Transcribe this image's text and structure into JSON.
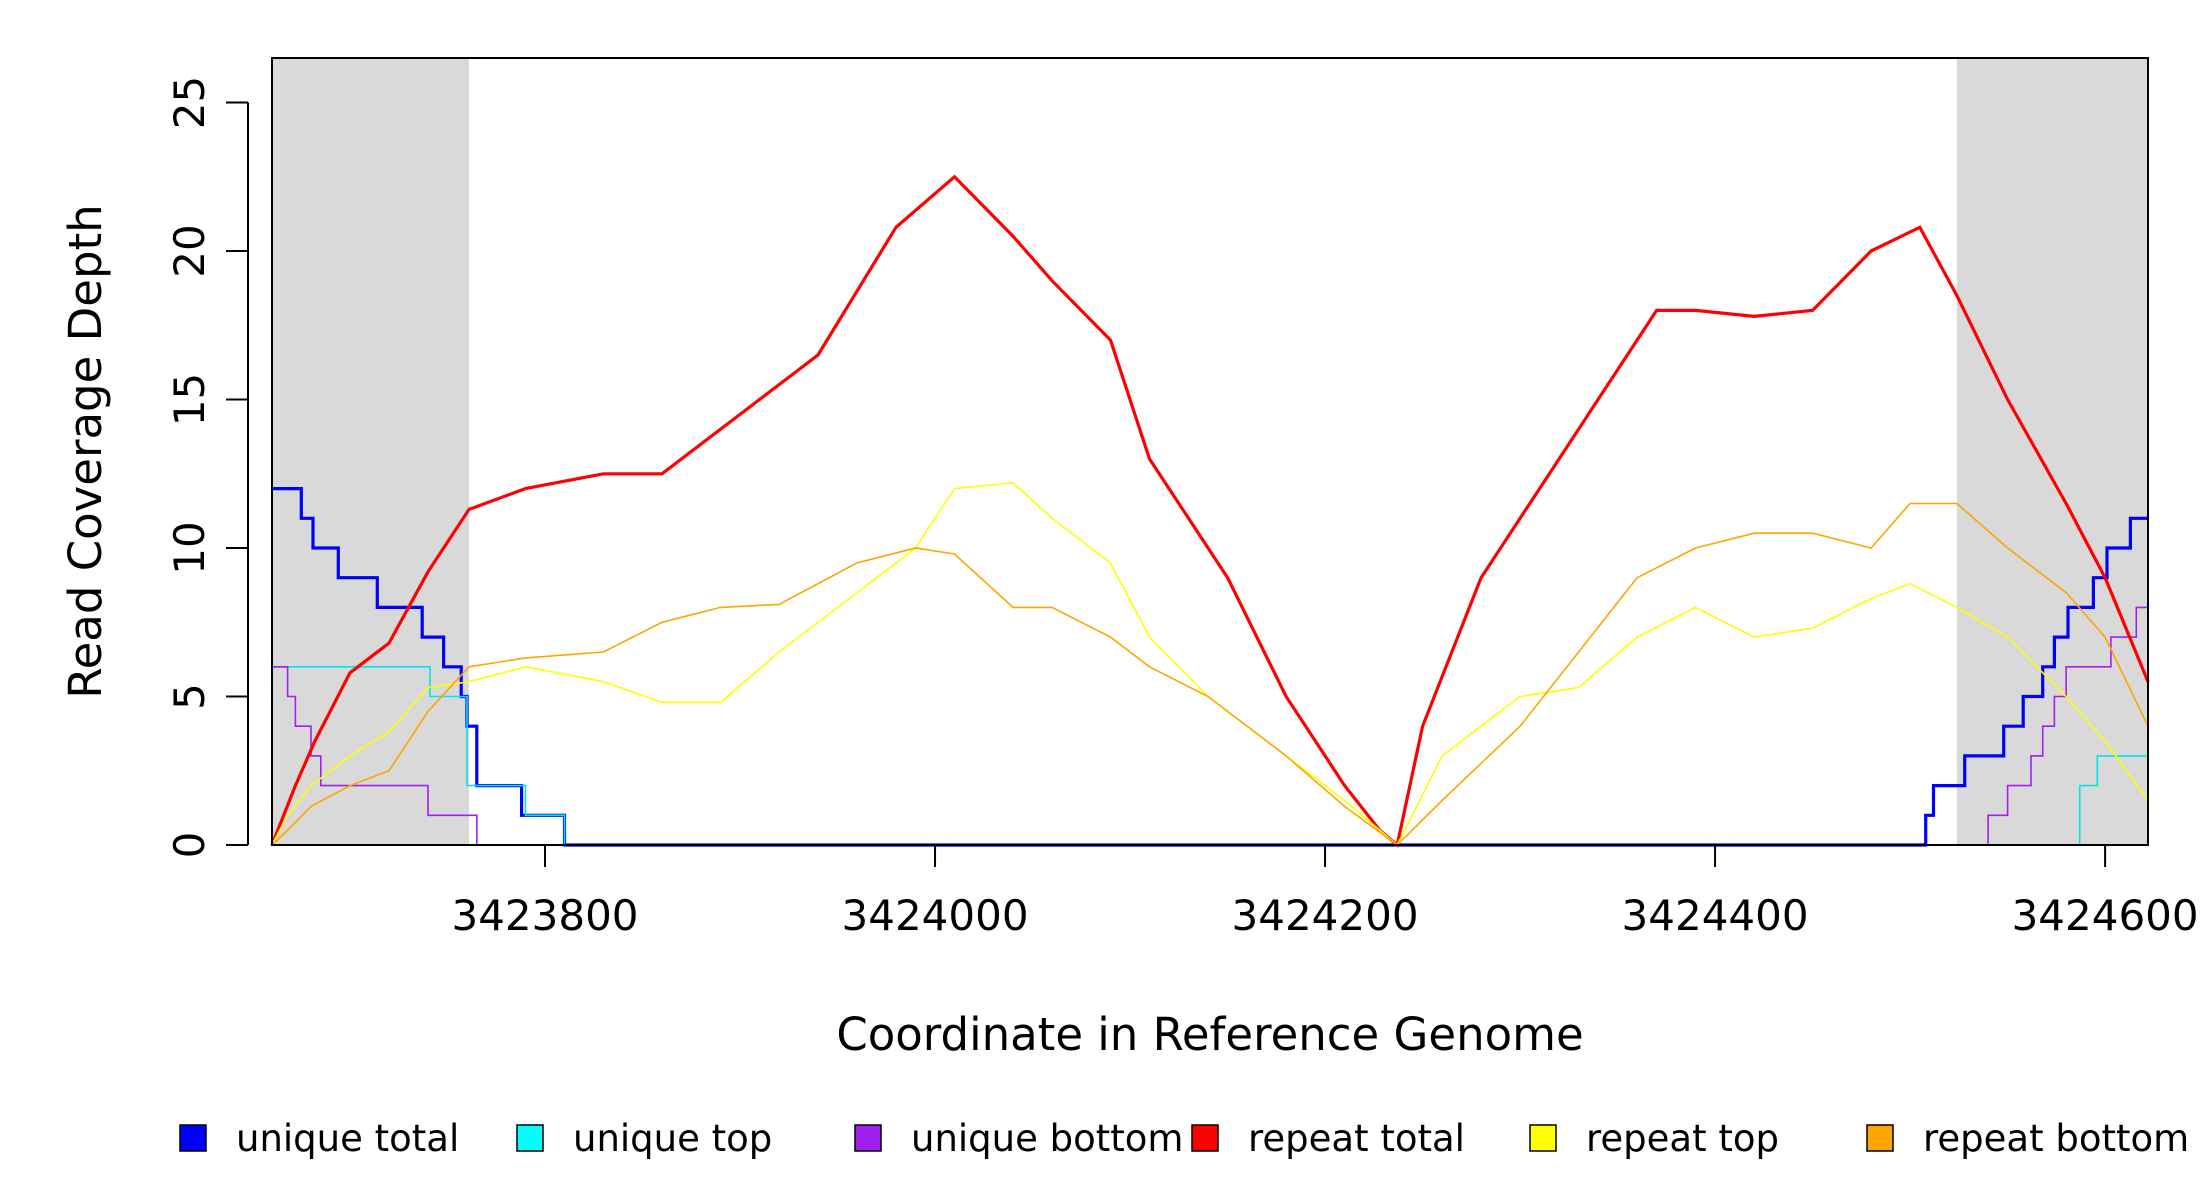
{
  "chart_data": {
    "type": "line",
    "title": "",
    "xlabel": "Coordinate in Reference Genome",
    "ylabel": "Read Coverage Depth",
    "xlim": [
      3423660,
      3424622
    ],
    "ylim": [
      0,
      26.5
    ],
    "x_ticks": [
      3423800,
      3424000,
      3424200,
      3424400,
      3424600
    ],
    "x_tick_labels": [
      "3423800",
      "3424000",
      "3424200",
      "3424400",
      "3424600"
    ],
    "y_ticks": [
      0,
      5,
      10,
      15,
      20,
      25
    ],
    "y_tick_labels": [
      "0",
      "5",
      "10",
      "15",
      "20",
      "25"
    ],
    "grid": false,
    "legend_position": "bottom",
    "shaded_regions": [
      {
        "x_start": 3423660,
        "x_end": 3423761,
        "color": "#d9d9d9"
      },
      {
        "x_start": 3424524,
        "x_end": 3424622,
        "color": "#d9d9d9"
      }
    ],
    "series": [
      {
        "name": "unique total",
        "color": "#0000ff",
        "width": 3.2,
        "step": true,
        "x": [
          3423660,
          3423668,
          3423675,
          3423681,
          3423689,
          3423694,
          3423700,
          3423714,
          3423737,
          3423741,
          3423748,
          3423757,
          3423760,
          3423765,
          3423781,
          3423788,
          3423810,
          3424504,
          3424508,
          3424512,
          3424528,
          3424537,
          3424548,
          3424558,
          3424568,
          3424574,
          3424581,
          3424594,
          3424601,
          3424613,
          3424622
        ],
        "y": [
          12,
          12,
          11,
          10,
          10,
          9,
          9,
          8,
          7,
          7,
          6,
          5,
          4,
          2,
          2,
          1,
          0,
          0,
          1,
          2,
          3,
          3,
          4,
          5,
          6,
          7,
          8,
          9,
          10,
          11,
          11
        ]
      },
      {
        "name": "unique top",
        "color": "#00e5ee",
        "width": 1.6,
        "step": true,
        "x": [
          3423660,
          3423714,
          3423741,
          3423754,
          3423760,
          3423790,
          3423810,
          3424526,
          3424587,
          3424596,
          3424622
        ],
        "y": [
          6,
          6,
          5,
          5,
          2,
          1,
          0,
          0,
          2,
          3,
          3
        ]
      },
      {
        "name": "unique bottom",
        "color": "#a020f0",
        "width": 1.6,
        "step": true,
        "x": [
          3423660,
          3423668,
          3423672,
          3423680,
          3423685,
          3423695,
          3423710,
          3423730,
          3423740,
          3423765,
          3424526,
          3424540,
          3424550,
          3424562,
          3424568,
          3424574,
          3424580,
          3424594,
          3424603,
          3424616,
          3424622
        ],
        "y": [
          6,
          5,
          4,
          3,
          2,
          2,
          2,
          2,
          1,
          0,
          0,
          1,
          2,
          3,
          4,
          5,
          6,
          6,
          7,
          8,
          5
        ]
      },
      {
        "name": "repeat total",
        "color": "#ff0000",
        "width": 3.2,
        "step": false,
        "x": [
          3423660,
          3423672,
          3423682,
          3423700,
          3423720,
          3423740,
          3423761,
          3423790,
          3423830,
          3423860,
          3423900,
          3423940,
          3423980,
          3424010,
          3424040,
          3424060,
          3424090,
          3424110,
          3424150,
          3424180,
          3424210,
          3424228,
          3424237,
          3424250,
          3424280,
          3424310,
          3424340,
          3424370,
          3424390,
          3424420,
          3424450,
          3424480,
          3424505,
          3424524,
          3424550,
          3424580,
          3424600,
          3424622
        ],
        "y": [
          0,
          2,
          3.5,
          5.8,
          6.8,
          9.2,
          11.3,
          12,
          12.5,
          12.5,
          14.5,
          16.5,
          20.8,
          22.5,
          20.5,
          19,
          17,
          13,
          9,
          5,
          2,
          0.5,
          0,
          4,
          9,
          12,
          15,
          18,
          18,
          17.8,
          18,
          20,
          20.8,
          18.5,
          15,
          11.5,
          9,
          5.5
        ]
      },
      {
        "name": "repeat top",
        "color": "#ffff00",
        "width": 1.6,
        "step": false,
        "x": [
          3423660,
          3423668,
          3423680,
          3423700,
          3423720,
          3423740,
          3423761,
          3423790,
          3423830,
          3423860,
          3423890,
          3423920,
          3423960,
          3423990,
          3424010,
          3424040,
          3424060,
          3424090,
          3424110,
          3424140,
          3424180,
          3424210,
          3424237,
          3424260,
          3424300,
          3424330,
          3424360,
          3424390,
          3424420,
          3424450,
          3424480,
          3424500,
          3424524,
          3424550,
          3424580,
          3424600,
          3424622
        ],
        "y": [
          0,
          1,
          2,
          3,
          3.8,
          5.3,
          5.5,
          6,
          5.5,
          4.8,
          4.8,
          6.5,
          8.5,
          10,
          12,
          12.2,
          11,
          9.5,
          7,
          5,
          3,
          1.5,
          0,
          3,
          5,
          5.3,
          7,
          8,
          7,
          7.3,
          8.3,
          8.8,
          8,
          7,
          5,
          3.5,
          1.5
        ]
      },
      {
        "name": "repeat bottom",
        "color": "#ffa500",
        "width": 1.6,
        "step": false,
        "x": [
          3423660,
          3423668,
          3423680,
          3423700,
          3423720,
          3423740,
          3423761,
          3423790,
          3423830,
          3423860,
          3423890,
          3423920,
          3423960,
          3423990,
          3424010,
          3424040,
          3424060,
          3424090,
          3424110,
          3424140,
          3424180,
          3424210,
          3424237,
          3424260,
          3424300,
          3424330,
          3424360,
          3424390,
          3424420,
          3424450,
          3424480,
          3424500,
          3424524,
          3424550,
          3424580,
          3424600,
          3424622
        ],
        "y": [
          0,
          0.5,
          1.3,
          2,
          2.5,
          4.5,
          6,
          6.3,
          6.5,
          7.5,
          8,
          8.1,
          9.5,
          10,
          9.8,
          8,
          8,
          7,
          6,
          5,
          3,
          1.3,
          0,
          1.5,
          4,
          6.5,
          9,
          10,
          10.5,
          10.5,
          10,
          11.5,
          11.5,
          10,
          8.5,
          7,
          4
        ]
      }
    ]
  },
  "legend": {
    "items": [
      {
        "label": "unique total",
        "color": "#0000ff"
      },
      {
        "label": "unique top",
        "color": "#00ffff"
      },
      {
        "label": "unique bottom",
        "color": "#a020f0"
      },
      {
        "label": "repeat total",
        "color": "#ff0000"
      },
      {
        "label": "repeat top",
        "color": "#ffff00"
      },
      {
        "label": "repeat bottom",
        "color": "#ffa500"
      }
    ]
  }
}
